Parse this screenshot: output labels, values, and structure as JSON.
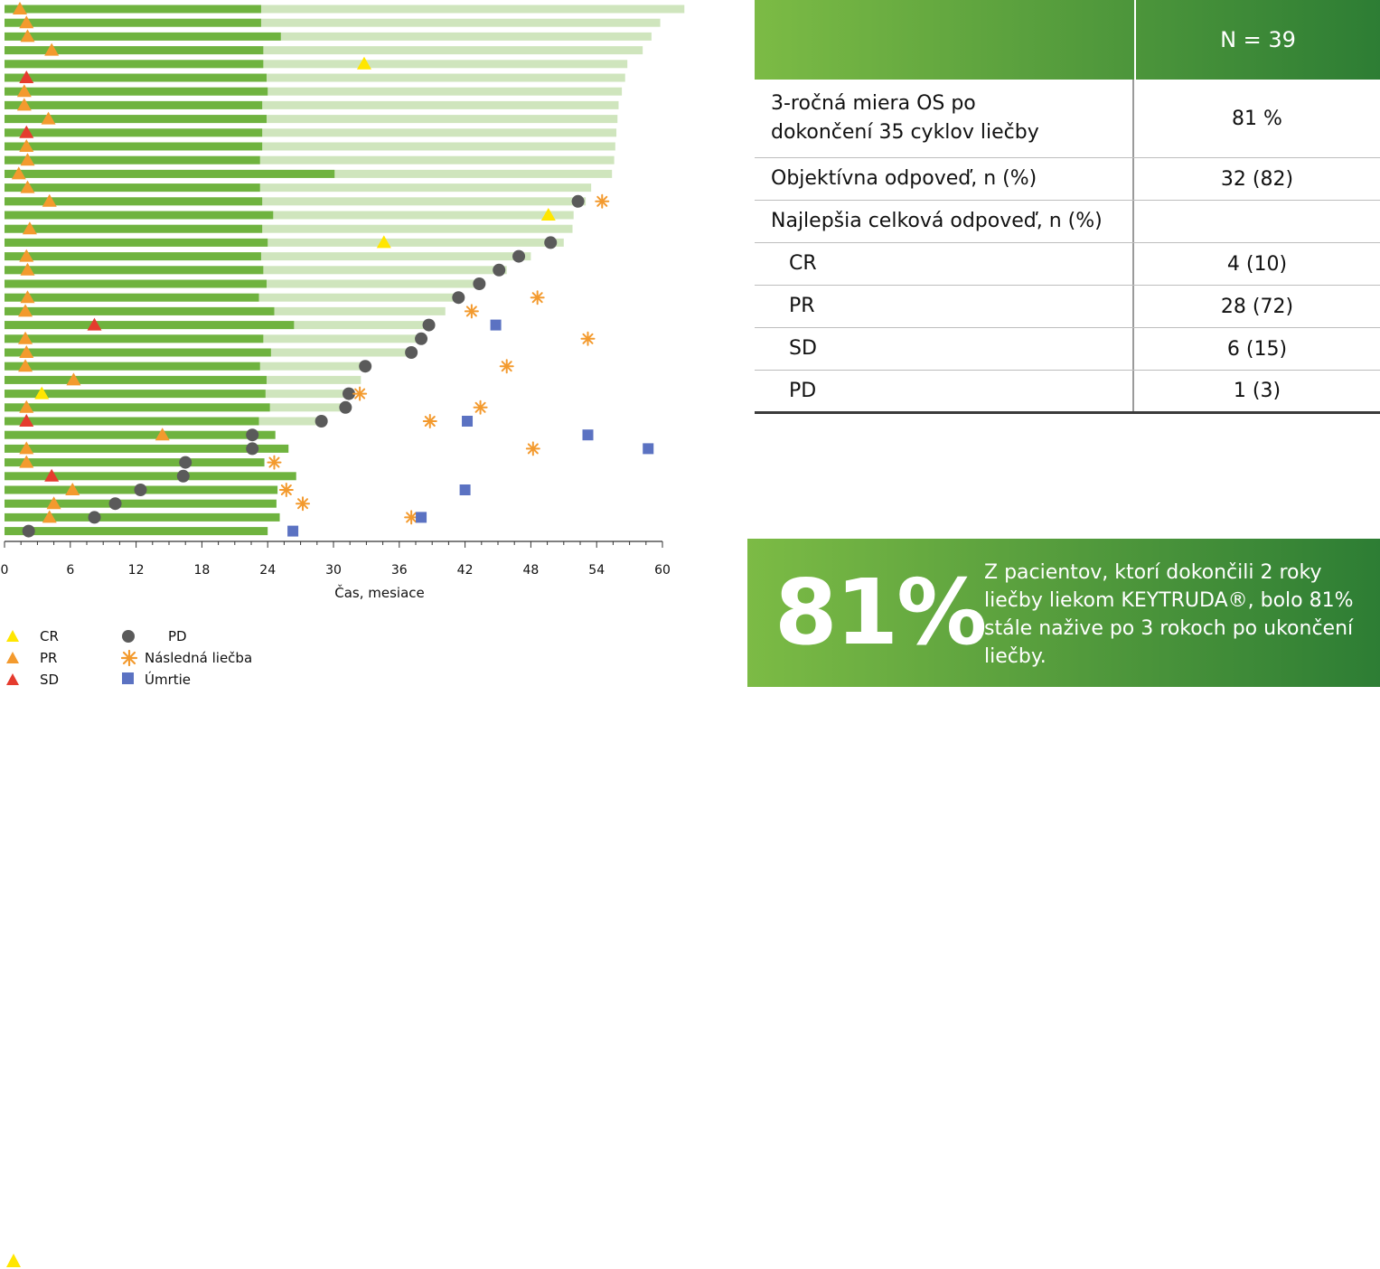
{
  "chart_data": {
    "type": "swimmer",
    "xlabel": "Čas, mesiace",
    "xlim": [
      0,
      60
    ],
    "xticks": [
      0,
      6,
      12,
      18,
      24,
      30,
      36,
      42,
      48,
      54,
      60
    ],
    "colors": {
      "treatment": "#6fb33f",
      "followup": "#cfe5bd",
      "CR": "#ffe600",
      "PR": "#f39a2e",
      "SD": "#e53b2e",
      "PD": "#5a5a5a",
      "next_therapy": "#f39a2e",
      "death": "#5b72c2"
    },
    "patients": [
      {
        "treat": 23.4,
        "total": 62.0,
        "events": [
          {
            "type": "PR",
            "t": 1.4
          }
        ]
      },
      {
        "treat": 23.4,
        "total": 59.8,
        "events": [
          {
            "type": "PR",
            "t": 2.0
          }
        ]
      },
      {
        "treat": 25.2,
        "total": 59.0,
        "events": [
          {
            "type": "PR",
            "t": 2.1
          }
        ]
      },
      {
        "treat": 23.6,
        "total": 58.2,
        "events": [
          {
            "type": "PR",
            "t": 4.3
          }
        ]
      },
      {
        "treat": 23.6,
        "total": 56.8,
        "events": [
          {
            "type": "CR",
            "t": 32.8
          }
        ]
      },
      {
        "treat": 23.9,
        "total": 56.6,
        "events": [
          {
            "type": "SD",
            "t": 2.0
          }
        ]
      },
      {
        "treat": 24.0,
        "total": 56.3,
        "events": [
          {
            "type": "PR",
            "t": 1.8
          }
        ]
      },
      {
        "treat": 23.5,
        "total": 56.0,
        "events": [
          {
            "type": "PR",
            "t": 1.8
          }
        ]
      },
      {
        "treat": 23.9,
        "total": 55.9,
        "events": [
          {
            "type": "PR",
            "t": 4.0
          }
        ]
      },
      {
        "treat": 23.5,
        "total": 55.8,
        "events": [
          {
            "type": "SD",
            "t": 2.0
          }
        ]
      },
      {
        "treat": 23.5,
        "total": 55.7,
        "events": [
          {
            "type": "PR",
            "t": 2.0
          }
        ]
      },
      {
        "treat": 23.3,
        "total": 55.6,
        "events": [
          {
            "type": "PR",
            "t": 2.1
          }
        ]
      },
      {
        "treat": 30.1,
        "total": 55.4,
        "events": [
          {
            "type": "PR",
            "t": 1.3
          }
        ]
      },
      {
        "treat": 23.3,
        "total": 53.5,
        "events": [
          {
            "type": "PR",
            "t": 2.1
          }
        ]
      },
      {
        "treat": 23.5,
        "total": 53.0,
        "events": [
          {
            "type": "PR",
            "t": 4.1
          },
          {
            "type": "PD",
            "t": 52.3
          },
          {
            "type": "NT",
            "t": 54.5
          }
        ]
      },
      {
        "treat": 24.5,
        "total": 51.9,
        "events": [
          {
            "type": "CR",
            "t": 49.6
          }
        ]
      },
      {
        "treat": 23.5,
        "total": 51.8,
        "events": [
          {
            "type": "PR",
            "t": 2.3
          }
        ]
      },
      {
        "treat": 24.0,
        "total": 51.0,
        "events": [
          {
            "type": "CR",
            "t": 34.6
          },
          {
            "type": "PD",
            "t": 49.8
          }
        ]
      },
      {
        "treat": 23.4,
        "total": 48.0,
        "events": [
          {
            "type": "PR",
            "t": 2.0
          },
          {
            "type": "PD",
            "t": 46.9
          }
        ]
      },
      {
        "treat": 23.6,
        "total": 45.8,
        "events": [
          {
            "type": "PR",
            "t": 2.1
          },
          {
            "type": "PD",
            "t": 45.1
          }
        ]
      },
      {
        "treat": 23.9,
        "total": 43.5,
        "events": [
          {
            "type": "PD",
            "t": 43.3
          }
        ]
      },
      {
        "treat": 23.2,
        "total": 41.7,
        "events": [
          {
            "type": "PR",
            "t": 2.1
          },
          {
            "type": "PD",
            "t": 41.4
          },
          {
            "type": "NT",
            "t": 48.6
          }
        ]
      },
      {
        "treat": 24.6,
        "total": 40.2,
        "events": [
          {
            "type": "PR",
            "t": 1.9
          },
          {
            "type": "NT",
            "t": 42.6
          }
        ]
      },
      {
        "treat": 26.4,
        "total": 39.0,
        "events": [
          {
            "type": "SD",
            "t": 8.2
          },
          {
            "type": "PD",
            "t": 38.7
          },
          {
            "type": "Death",
            "t": 44.8
          }
        ]
      },
      {
        "treat": 23.6,
        "total": 38.2,
        "events": [
          {
            "type": "PR",
            "t": 1.9
          },
          {
            "type": "PD",
            "t": 38.0
          },
          {
            "type": "NT",
            "t": 53.2
          }
        ]
      },
      {
        "treat": 24.3,
        "total": 37.3,
        "events": [
          {
            "type": "PR",
            "t": 2.0
          },
          {
            "type": "PD",
            "t": 37.1
          }
        ]
      },
      {
        "treat": 23.3,
        "total": 33.1,
        "events": [
          {
            "type": "PR",
            "t": 1.9
          },
          {
            "type": "PD",
            "t": 32.9
          },
          {
            "type": "NT",
            "t": 45.8
          }
        ]
      },
      {
        "treat": 23.9,
        "total": 32.5,
        "events": [
          {
            "type": "PR",
            "t": 6.3
          }
        ]
      },
      {
        "treat": 23.8,
        "total": 31.6,
        "events": [
          {
            "type": "CR",
            "t": 3.4
          },
          {
            "type": "PD",
            "t": 31.4
          },
          {
            "type": "NT",
            "t": 32.4
          }
        ]
      },
      {
        "treat": 24.2,
        "total": 31.2,
        "events": [
          {
            "type": "PR",
            "t": 2.0
          },
          {
            "type": "PD",
            "t": 31.1
          },
          {
            "type": "NT",
            "t": 43.4
          }
        ]
      },
      {
        "treat": 23.2,
        "total": 29.1,
        "events": [
          {
            "type": "SD",
            "t": 2.0
          },
          {
            "type": "PD",
            "t": 28.9
          },
          {
            "type": "NT",
            "t": 38.8
          },
          {
            "type": "Death",
            "t": 42.2
          }
        ]
      },
      {
        "treat": 24.7,
        "total": 24.7,
        "events": [
          {
            "type": "PR",
            "t": 14.4
          },
          {
            "type": "PD",
            "t": 22.6
          },
          {
            "type": "Death",
            "t": 53.2
          }
        ]
      },
      {
        "treat": 25.9,
        "total": 25.9,
        "events": [
          {
            "type": "PR",
            "t": 2.0
          },
          {
            "type": "PD",
            "t": 22.6
          },
          {
            "type": "NT",
            "t": 48.2
          },
          {
            "type": "Death",
            "t": 58.7
          }
        ]
      },
      {
        "treat": 23.7,
        "total": 23.7,
        "events": [
          {
            "type": "PR",
            "t": 2.0
          },
          {
            "type": "PD",
            "t": 16.5
          },
          {
            "type": "NT",
            "t": 24.6
          }
        ]
      },
      {
        "treat": 26.6,
        "total": 26.6,
        "events": [
          {
            "type": "SD",
            "t": 4.3
          },
          {
            "type": "PD",
            "t": 16.3
          }
        ]
      },
      {
        "treat": 24.9,
        "total": 24.9,
        "events": [
          {
            "type": "PR",
            "t": 6.2
          },
          {
            "type": "PD",
            "t": 12.4
          },
          {
            "type": "NT",
            "t": 25.7
          },
          {
            "type": "Death",
            "t": 42.0
          }
        ]
      },
      {
        "treat": 24.8,
        "total": 24.8,
        "events": [
          {
            "type": "PR",
            "t": 4.5
          },
          {
            "type": "PD",
            "t": 10.1
          },
          {
            "type": "NT",
            "t": 27.2
          }
        ]
      },
      {
        "treat": 25.1,
        "total": 25.1,
        "events": [
          {
            "type": "PR",
            "t": 4.1
          },
          {
            "type": "PD",
            "t": 8.2
          },
          {
            "type": "NT",
            "t": 37.1
          },
          {
            "type": "Death",
            "t": 38.0
          }
        ]
      },
      {
        "treat": 24.0,
        "total": 24.0,
        "events": [
          {
            "type": "PD",
            "t": 2.2
          },
          {
            "type": "Death",
            "t": 26.3
          }
        ]
      }
    ]
  },
  "legend": {
    "cr": "CR",
    "pr": "PR",
    "sd": "SD",
    "pd": "PD",
    "next_therapy": "Následná liečba",
    "death": "Úmrtie"
  },
  "table": {
    "header": "N = 39",
    "rows": [
      {
        "label": "3-ročná miera OS po dokončení 35 cyklov liečby",
        "value": "81 %"
      },
      {
        "label": "Objektívna odpoveď, n (%)",
        "value": "32 (82)"
      },
      {
        "label": "Najlepšia celková odpoveď, n (%)",
        "value": ""
      },
      {
        "label": "CR",
        "value": "4 (10)"
      },
      {
        "label": "PR",
        "value": "28 (72)"
      },
      {
        "label": "SD",
        "value": "6 (15)"
      },
      {
        "label": "PD",
        "value": "1 (3)"
      }
    ]
  },
  "banner": {
    "big": "81%",
    "text": "Z pacientov, ktorí dokončili 2 roky liečby liekom KEYTRUDA®, bolo 81% stále nažive po 3 rokoch po ukončení liečby."
  }
}
